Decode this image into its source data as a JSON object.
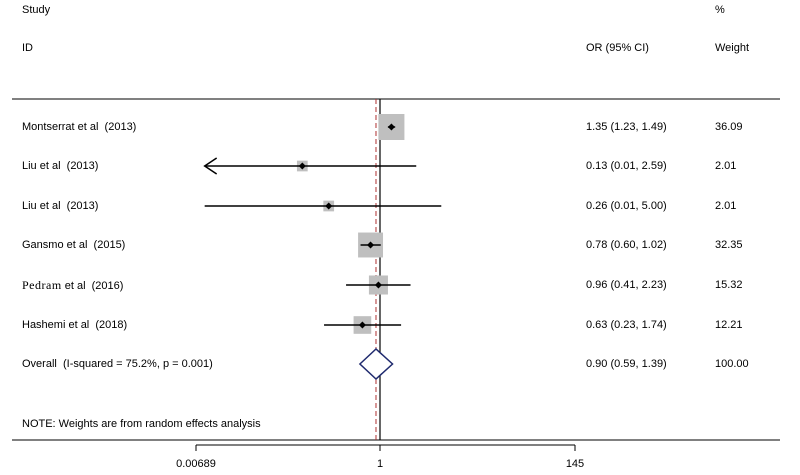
{
  "chart_data": {
    "type": "forest",
    "headers": {
      "study_top": "Study",
      "study_bottom": "ID",
      "estimate": "OR (95% CI)",
      "weight_top": "%",
      "weight_bottom": "Weight"
    },
    "null_value": 1,
    "overall_or": 0.9,
    "axis_ticks": [
      "0.00689",
      "1",
      "145"
    ],
    "rows": [
      {
        "name_main": "Montserrat et al",
        "name_alt": "",
        "year": "(2013)",
        "or": 1.35,
        "lo": 1.23,
        "hi": 1.49,
        "ci_text": "1.35 (1.23, 1.49)",
        "weight": 36.09,
        "weight_text": "36.09"
      },
      {
        "name_main": "Liu et al",
        "name_alt": "",
        "year": "(2013)",
        "or": 0.13,
        "lo": 0.01,
        "hi": 2.59,
        "ci_text": "0.13 (0.01, 2.59)",
        "weight": 2.01,
        "weight_text": "2.01",
        "arrow_left": true
      },
      {
        "name_main": "Liu et al",
        "name_alt": "",
        "year": "(2013)",
        "or": 0.26,
        "lo": 0.01,
        "hi": 5.0,
        "ci_text": "0.26 (0.01, 5.00)",
        "weight": 2.01,
        "weight_text": "2.01"
      },
      {
        "name_main": "Gansmo et al",
        "name_alt": "",
        "year": "(2015)",
        "or": 0.78,
        "lo": 0.6,
        "hi": 1.02,
        "ci_text": "0.78 (0.60, 1.02)",
        "weight": 32.35,
        "weight_text": "32.35"
      },
      {
        "name_main": "et al",
        "name_alt": "Pedram",
        "year": "(2016)",
        "or": 0.96,
        "lo": 0.41,
        "hi": 2.23,
        "ci_text": "0.96 (0.41, 2.23)",
        "weight": 15.32,
        "weight_text": "15.32"
      },
      {
        "name_main": "Hashemi et al",
        "name_alt": "",
        "year": "(2018)",
        "or": 0.63,
        "lo": 0.23,
        "hi": 1.74,
        "ci_text": "0.63 (0.23, 1.74)",
        "weight": 12.21,
        "weight_text": "12.21"
      }
    ],
    "overall": {
      "label": "Overall",
      "stats": "(I-squared = 75.2%, p = 0.001)",
      "or": 0.9,
      "lo": 0.59,
      "hi": 1.39,
      "ci_text": "0.90 (0.59, 1.39)",
      "weight_text": "100.00"
    },
    "note": "NOTE: Weights are from random effects analysis",
    "colors": {
      "box": "#bfbfbf",
      "null_line": "#000000",
      "overall_line": "#b03030",
      "diamond": "#1f2a6e",
      "line": "#000000"
    }
  }
}
